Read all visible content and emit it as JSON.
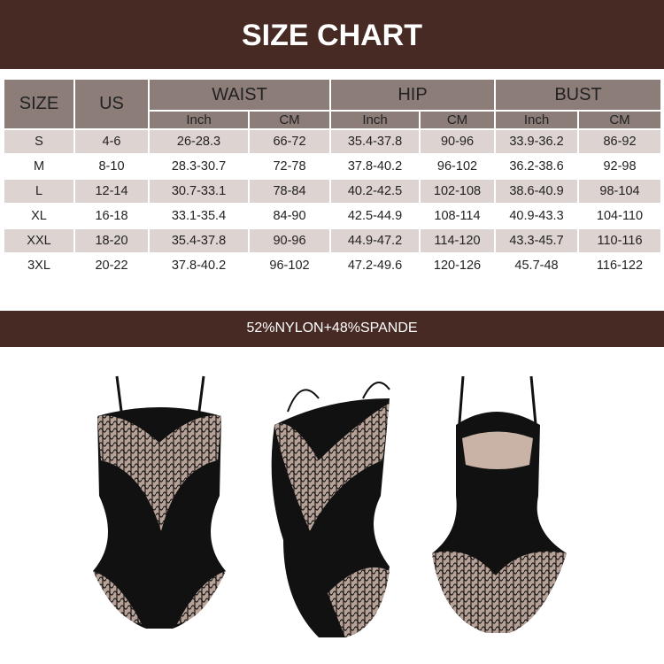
{
  "title": "SIZE CHART",
  "material": "52%NYLON+48%SPANDE",
  "colors": {
    "banner": "#472a24",
    "header": "#8c7d78",
    "stripe": "#ddd3d0"
  },
  "table": {
    "headers": {
      "size": "SIZE",
      "us": "US",
      "waist": "WAIST",
      "hip": "HIP",
      "bust": "BUST",
      "inch": "Inch",
      "cm": "CM"
    },
    "rows": [
      [
        "S",
        "4-6",
        "26-28.3",
        "66-72",
        "35.4-37.8",
        "90-96",
        "33.9-36.2",
        "86-92"
      ],
      [
        "M",
        "8-10",
        "28.3-30.7",
        "72-78",
        "37.8-40.2",
        "96-102",
        "36.2-38.6",
        "92-98"
      ],
      [
        "L",
        "12-14",
        "30.7-33.1",
        "78-84",
        "40.2-42.5",
        "102-108",
        "38.6-40.9",
        "98-104"
      ],
      [
        "XL",
        "16-18",
        "33.1-35.4",
        "84-90",
        "42.5-44.9",
        "108-114",
        "40.9-43.3",
        "104-110"
      ],
      [
        "XXL",
        "18-20",
        "35.4-37.8",
        "90-96",
        "44.9-47.2",
        "114-120",
        "43.3-45.7",
        "110-116"
      ],
      [
        "3XL",
        "20-22",
        "37.8-40.2",
        "96-102",
        "47.2-49.6",
        "120-126",
        "45.7-48",
        "116-122"
      ]
    ]
  },
  "products": [
    "front-view",
    "side-view",
    "back-view"
  ]
}
